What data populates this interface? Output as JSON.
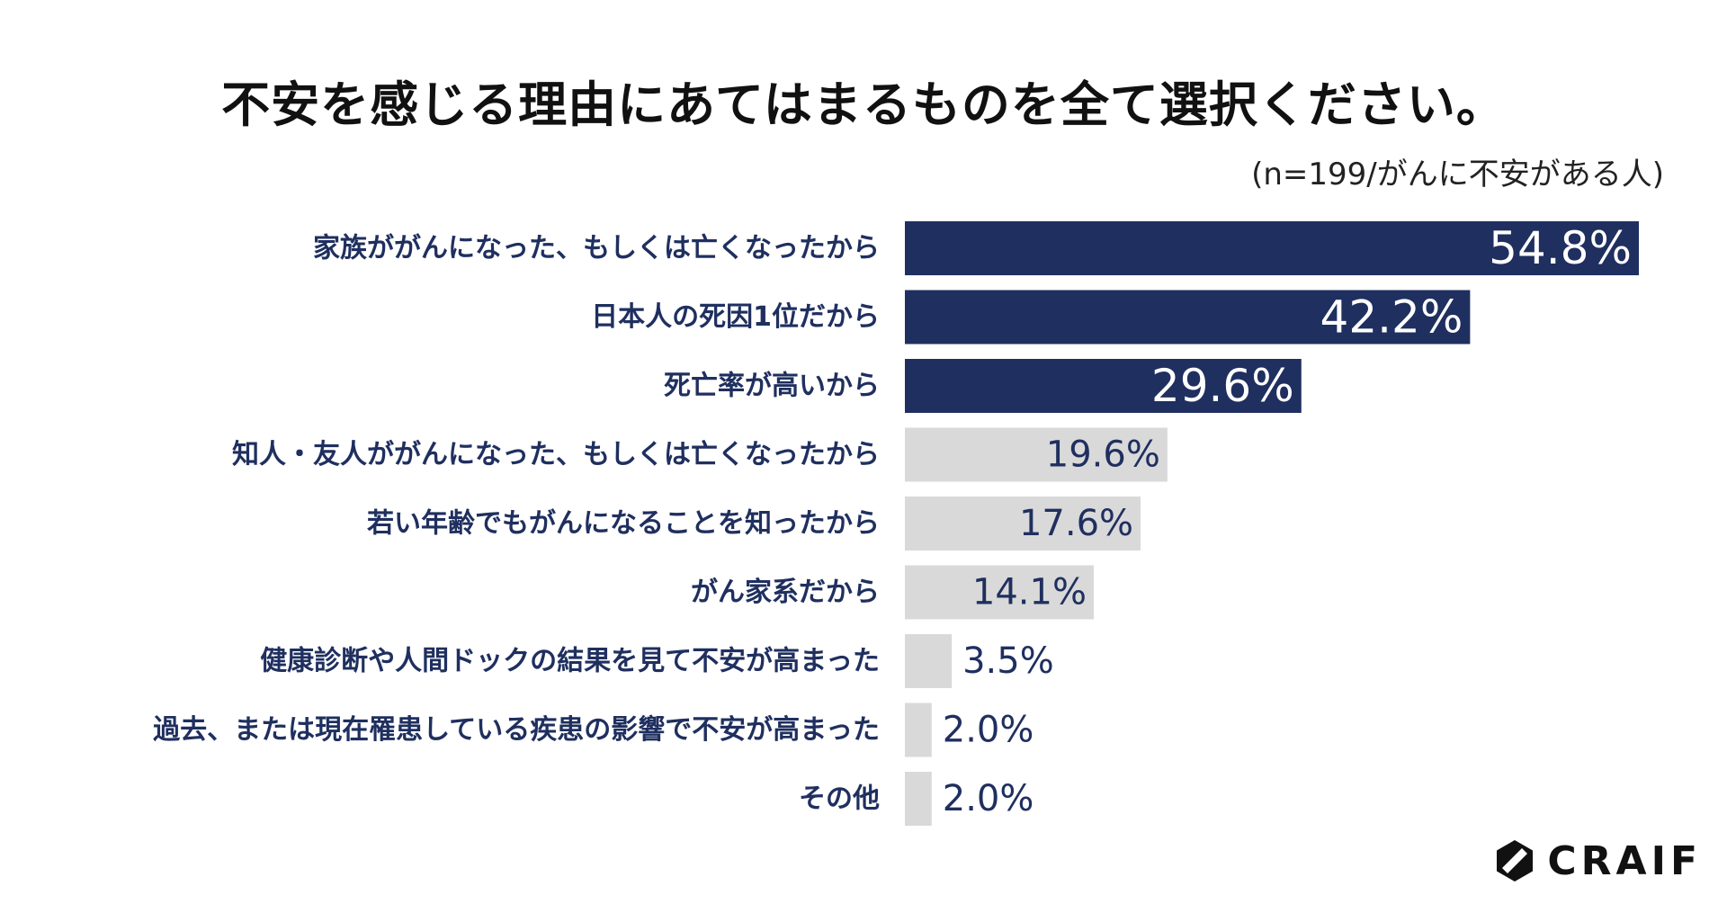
{
  "title": "不安を感じる理由にあてはまるものを全て選択ください。",
  "subtitle": "(n=199/がんに不安がある人)",
  "brand": {
    "name": "CRAIF",
    "logo_icon": "craif-hexagon-logo-icon"
  },
  "colors": {
    "highlight_bar": "#1f2f5f",
    "normal_bar": "#d9d9d9",
    "label_text": "#1f2f5f",
    "value_on_dark": "#ffffff",
    "value_on_light": "#1f2f5f"
  },
  "chart_data": {
    "type": "bar",
    "orientation": "horizontal",
    "categories": [
      "家族ががんになった、もしくは亡くなったから",
      "日本人の死因1位だから",
      "死亡率が高いから",
      "知人・友人ががんになった、もしくは亡くなったから",
      "若い年齢でもがんになることを知ったから",
      "がん家系だから",
      "健康診断や人間ドックの結果を見て不安が高まった",
      "過去、または現在罹患している疾患の影響で不安が高まった",
      "その他"
    ],
    "values": [
      54.8,
      42.2,
      29.6,
      19.6,
      17.6,
      14.1,
      3.5,
      2.0,
      2.0
    ],
    "value_labels": [
      "54.8%",
      "42.2%",
      "29.6%",
      "19.6%",
      "17.6%",
      "14.1%",
      "3.5%",
      "2.0%",
      "2.0%"
    ],
    "highlighted_top_n": 3,
    "unit": "%",
    "xlim": [
      0,
      60
    ],
    "grid": false,
    "legend": "none"
  }
}
